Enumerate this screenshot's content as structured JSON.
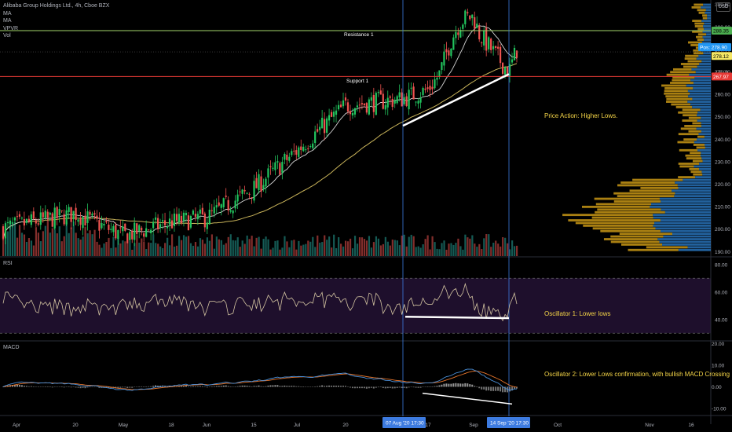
{
  "legend": {
    "symbol": "Alibaba Group Holdings Ltd., 4h, Cboe BZX",
    "indicators": [
      "MA",
      "MA",
      "VPVR",
      "Vol"
    ]
  },
  "currency": "USD",
  "annotations": {
    "resistance": "Resistance 1",
    "support": "Support 1",
    "price_action": "Price Action: Higher Lows.",
    "osc1": "Oscillator 1: Lower lows",
    "osc2": "Oscillator 2: Lower Lows confirmation, with bullish MACD Crossing"
  },
  "price_labels": {
    "resistance": "288.35",
    "pos_label": "Pos:",
    "pos_value": "278.90",
    "ma_value": "278.12",
    "support": "267.97",
    "ma_small": "270.00"
  },
  "colors": {
    "up": "#26a69a",
    "down": "#ef5350",
    "up_bright": "#22c55e",
    "resistance": "#a5d66b",
    "support": "#e53935",
    "ma_fast": "#d6d6d6",
    "ma_slow": "#c9b45a",
    "vp_up": "#2a79c4",
    "vp_down": "#d4a017",
    "rsi_band": "#1e0f2c",
    "rsi_line": "#d2c3a0",
    "macd_line": "#4a90d9",
    "signal_line": "#e8762c",
    "annot": "#f5d547",
    "cursor": "#3d7be0"
  },
  "chart_data": [
    {
      "type": "candlestick",
      "title": "Alibaba Group Holdings Ltd., 4h, Cboe BZX",
      "x_ticks": [
        "Apr",
        "20",
        "May",
        "18",
        "Jun",
        "15",
        "Jul",
        "20",
        "17",
        "Sep",
        "Oct",
        "Nov",
        "16"
      ],
      "y_ticks": [
        190,
        200,
        210,
        220,
        230,
        240,
        250,
        260,
        270,
        280,
        290,
        300
      ],
      "ylim": [
        188,
        302
      ],
      "levels": [
        {
          "name": "Resistance 1",
          "value": 288.35
        },
        {
          "name": "Support 1",
          "value": 267.97
        }
      ],
      "price_anchors": [
        {
          "label": "Apr",
          "value": 200
        },
        {
          "label": "20",
          "value": 207
        },
        {
          "label": "May",
          "value": 197
        },
        {
          "label": "18",
          "value": 203
        },
        {
          "label": "Jun",
          "value": 205
        },
        {
          "label": "15",
          "value": 218
        },
        {
          "label": "Jul",
          "value": 235
        },
        {
          "label": "20",
          "value": 255
        },
        {
          "label": "07 Aug '20",
          "value": 258
        },
        {
          "label": "17",
          "value": 262
        },
        {
          "label": "Sep",
          "value": 290
        },
        {
          "label": "14 Sep '20",
          "value": 270
        }
      ],
      "last_price": 278.9,
      "trendlines": [
        {
          "name": "Price Action: Higher Lows.",
          "from": 246,
          "to": 269
        }
      ]
    },
    {
      "type": "line",
      "title": "RSI",
      "y_ticks": [
        40.0,
        60.0,
        80.0
      ],
      "ylim": [
        25,
        85
      ],
      "band": [
        30,
        70
      ],
      "trendlines": [
        {
          "name": "Oscillator 1: Lower lows",
          "from": 42,
          "to": 41
        }
      ]
    },
    {
      "type": "histogram",
      "title": "MACD",
      "y_ticks": [
        -10.0,
        0.0,
        10.0,
        20.0
      ],
      "ylim": [
        -13,
        21
      ],
      "trendlines": [
        {
          "name": "Oscillator 2: Lower Lows confirmation, with bullish MACD Crossing",
          "from": -3,
          "to": -8
        }
      ]
    }
  ],
  "cursors": {
    "date1": "07 Aug '20",
    "time1": "17:30",
    "date2": "14 Sep '20",
    "time2": "17:30"
  }
}
